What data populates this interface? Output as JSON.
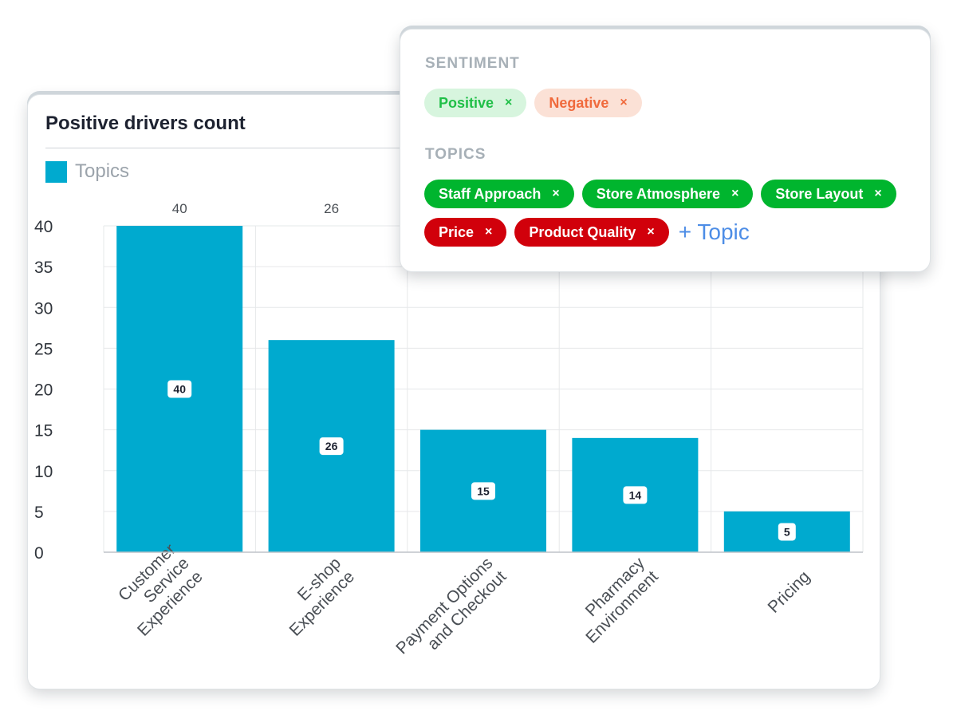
{
  "card": {
    "title": "Positive drivers count",
    "legend_label": "Topics",
    "legend_color": "#00aacf"
  },
  "filter": {
    "sentiment_label": "SENTIMENT",
    "sentiment_chips": [
      {
        "label": "Positive",
        "x": "×"
      },
      {
        "label": "Negative",
        "x": "×"
      }
    ],
    "topics_label": "TOPICS",
    "topic_chips": [
      {
        "label": "Staff Approach",
        "x": "×"
      },
      {
        "label": "Store Atmosphere",
        "x": "×"
      },
      {
        "label": "Store Layout",
        "x": "×"
      },
      {
        "label": "Price",
        "x": "×"
      },
      {
        "label": "Product Quality",
        "x": "×"
      }
    ],
    "add_topic_label": "+ Topic"
  },
  "chart_data": {
    "type": "bar",
    "title": "Positive drivers count",
    "categories": [
      [
        "Customer",
        "Service",
        "Experience"
      ],
      [
        "E-shop",
        "Experience"
      ],
      [
        "Payment Options",
        "and Checkout"
      ],
      [
        "Pharmacy",
        "Environment"
      ],
      [
        "Pricing"
      ]
    ],
    "series": [
      {
        "name": "Topics",
        "values": [
          40,
          26,
          15,
          14,
          5
        ]
      }
    ],
    "top_labels": [
      "40",
      "26",
      "",
      "",
      ""
    ],
    "ylim": [
      0,
      40
    ],
    "yticks": [
      0,
      5,
      10,
      15,
      20,
      25,
      30,
      35,
      40
    ],
    "grid": true,
    "bar_color": "#00aacf",
    "legend": "top-left"
  }
}
